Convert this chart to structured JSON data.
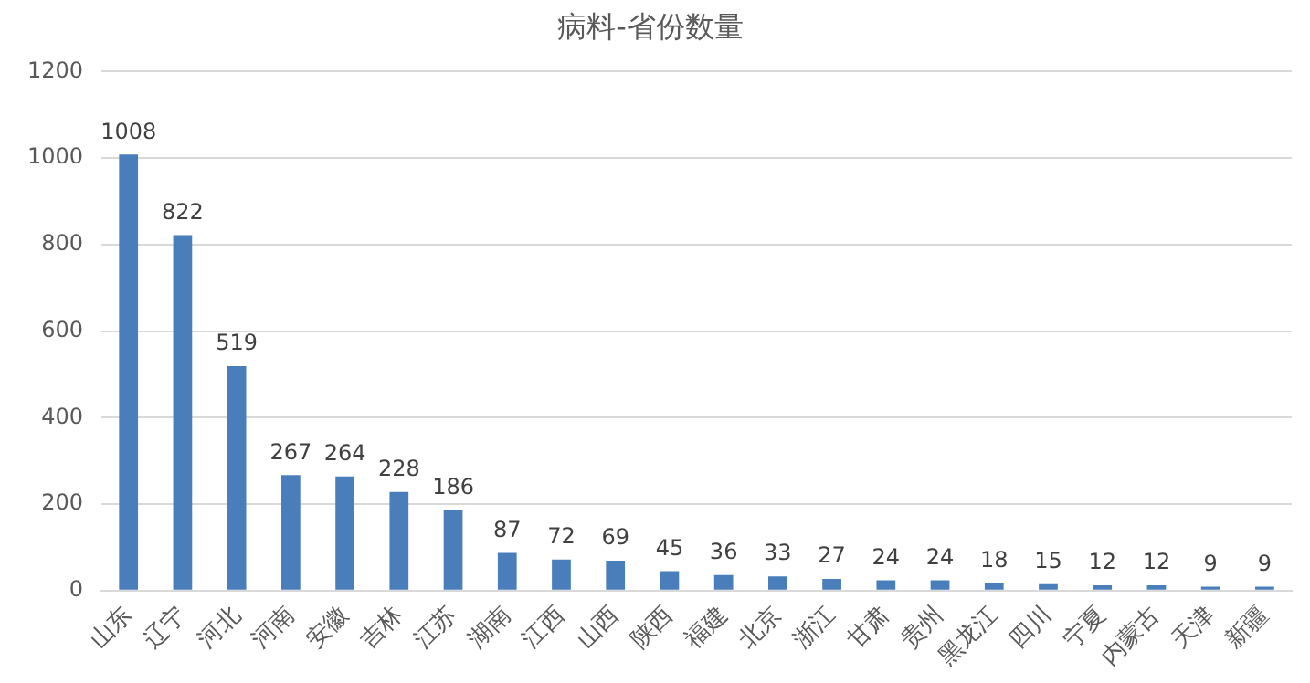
{
  "chart_data": {
    "type": "bar",
    "title": "病料-省份数量",
    "categories": [
      "山东",
      "辽宁",
      "河北",
      "河南",
      "安徽",
      "吉林",
      "江苏",
      "湖南",
      "江西",
      "山西",
      "陕西",
      "福建",
      "北京",
      "浙江",
      "甘肃",
      "贵州",
      "黑龙江",
      "四川",
      "宁夏",
      "内蒙古",
      "天津",
      "新疆"
    ],
    "values": [
      1008,
      822,
      519,
      267,
      264,
      228,
      186,
      87,
      72,
      69,
      45,
      36,
      33,
      27,
      24,
      24,
      18,
      15,
      12,
      12,
      9,
      9
    ],
    "color": "#4a7ebb",
    "ylim": [
      0,
      1200
    ],
    "yticks": [
      0,
      200,
      400,
      600,
      800,
      1000,
      1200
    ],
    "grid": "y",
    "data_labels": true
  }
}
